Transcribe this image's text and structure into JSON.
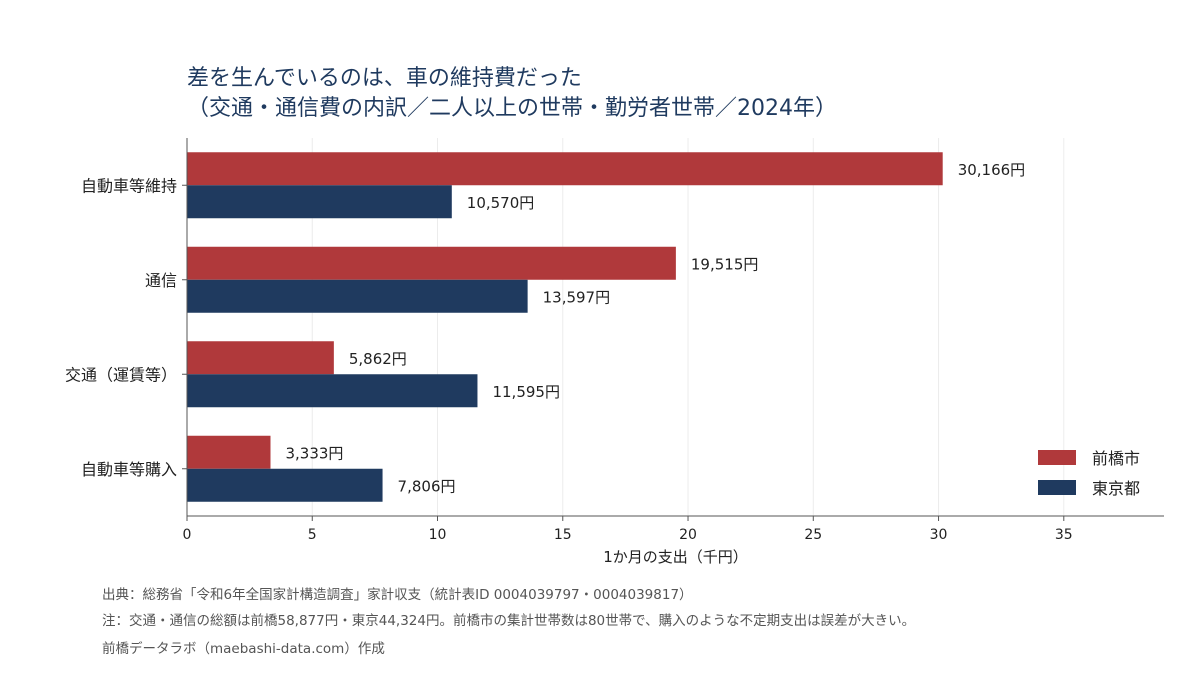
{
  "chart_data": {
    "type": "bar",
    "orientation": "horizontal",
    "title": "差を生んでいるのは、車の維持費だった",
    "subtitle": "（交通・通信費の内訳／二人以上の世帯・勤労者世帯／2024年）",
    "categories": [
      "自動車等維持",
      "通信",
      "交通（運賃等）",
      "自動車等購入"
    ],
    "series": [
      {
        "name": "前橋市",
        "color": "#b0393b",
        "values": [
          30.166,
          19.515,
          5.862,
          3.333
        ],
        "labels": [
          "30,166円",
          "19,515円",
          "5,862円",
          "3,333円"
        ]
      },
      {
        "name": "東京都",
        "color": "#1f3a5f",
        "values": [
          10.57,
          13.597,
          11.595,
          7.806
        ],
        "labels": [
          "10,570円",
          "13,597円",
          "11,595円",
          "7,806円"
        ]
      }
    ],
    "xlabel": "1か月の支出（千円）",
    "ylabel": "",
    "xlim": [
      0,
      39
    ],
    "xticks": [
      0,
      5,
      10,
      15,
      20,
      25,
      30,
      35
    ],
    "grid": "vertical",
    "legend_position": "bottom-right"
  },
  "footer": {
    "source": "出典：総務省「令和6年全国家計構造調査」家計収支（統計表ID 0004039797・0004039817）",
    "note": "注：交通・通信の総額は前橋58,877円・東京44,324円。前橋市の集計世帯数は80世帯で、購入のような不定期支出は誤差が大きい。",
    "credit": "前橋データラボ（maebashi-data.com）作成"
  }
}
